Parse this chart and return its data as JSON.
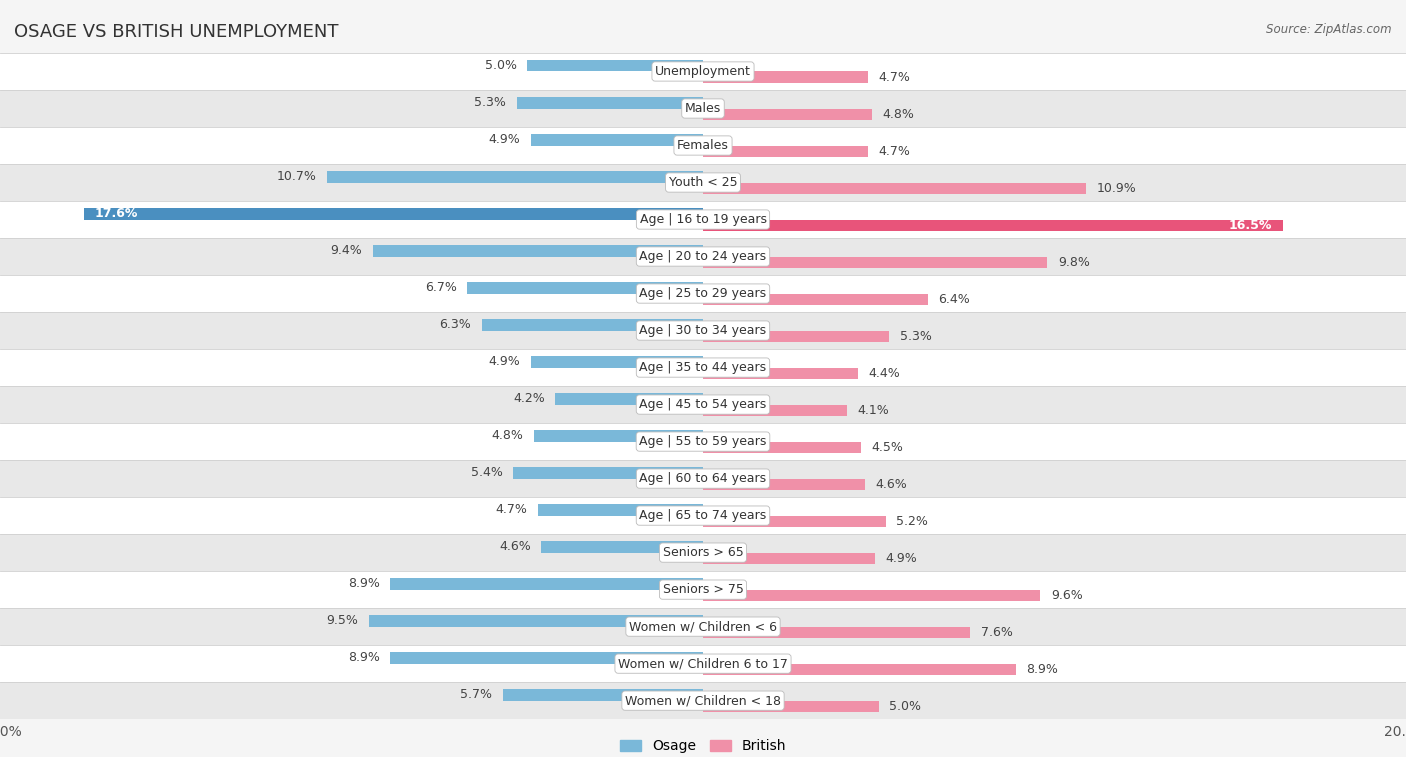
{
  "title": "OSAGE VS BRITISH UNEMPLOYMENT",
  "source": "Source: ZipAtlas.com",
  "categories": [
    "Unemployment",
    "Males",
    "Females",
    "Youth < 25",
    "Age | 16 to 19 years",
    "Age | 20 to 24 years",
    "Age | 25 to 29 years",
    "Age | 30 to 34 years",
    "Age | 35 to 44 years",
    "Age | 45 to 54 years",
    "Age | 55 to 59 years",
    "Age | 60 to 64 years",
    "Age | 65 to 74 years",
    "Seniors > 65",
    "Seniors > 75",
    "Women w/ Children < 6",
    "Women w/ Children 6 to 17",
    "Women w/ Children < 18"
  ],
  "osage_values": [
    5.0,
    5.3,
    4.9,
    10.7,
    17.6,
    9.4,
    6.7,
    6.3,
    4.9,
    4.2,
    4.8,
    5.4,
    4.7,
    4.6,
    8.9,
    9.5,
    8.9,
    5.7
  ],
  "british_values": [
    4.7,
    4.8,
    4.7,
    10.9,
    16.5,
    9.8,
    6.4,
    5.3,
    4.4,
    4.1,
    4.5,
    4.6,
    5.2,
    4.9,
    9.6,
    7.6,
    8.9,
    5.0
  ],
  "osage_color": "#7ab8d9",
  "british_color": "#f090a8",
  "osage_highlight_color": "#4a8fc0",
  "british_highlight_color": "#e8547a",
  "highlight_row": 4,
  "max_val": 20.0,
  "background_color": "#f5f5f5",
  "row_bg_light": "#ffffff",
  "row_bg_dark": "#e8e8e8",
  "bar_height": 0.32,
  "label_fontsize": 9.0,
  "title_fontsize": 13,
  "legend_label_osage": "Osage",
  "legend_label_british": "British"
}
